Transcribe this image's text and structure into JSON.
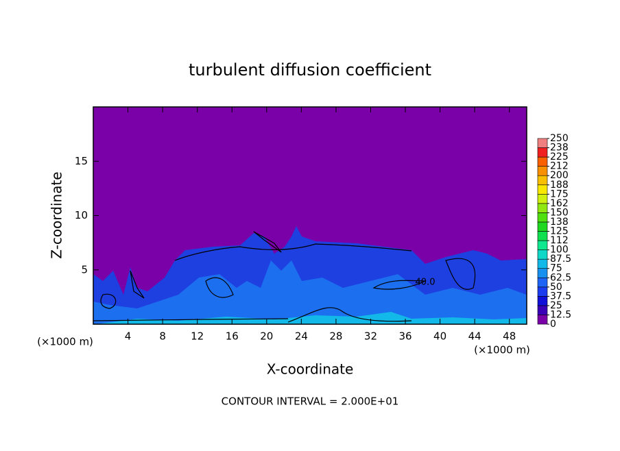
{
  "chart_data": {
    "type": "contour",
    "title": "turbulent diffusion coefficient",
    "x_label": "X-coordinate",
    "y_label": "Z-coordinate",
    "x_unit_labels": [
      "(×1000 m)",
      "(×1000 m)"
    ],
    "footer": "CONTOUR INTERVAL = 2.000E+01",
    "annotations": [
      "40.0"
    ],
    "xlim": [
      0,
      50
    ],
    "xticks": [
      4,
      8,
      12,
      16,
      20,
      24,
      28,
      32,
      36,
      40,
      44,
      48
    ],
    "ylim": [
      0,
      20
    ],
    "yticks": [
      5,
      10,
      15
    ],
    "colorbar_ticks": [
      0,
      12.5,
      25,
      37.5,
      50,
      62.5,
      75,
      87.5,
      100,
      112,
      125,
      138,
      150,
      162,
      175,
      188,
      200,
      212,
      225,
      238,
      250
    ],
    "colorbar_colors": [
      "#7a00a8",
      "#3a00b8",
      "#1010d8",
      "#1c3cf0",
      "#1e64f5",
      "#1890f0",
      "#12b8e8",
      "#10d8c8",
      "#10e890",
      "#10e050",
      "#20d820",
      "#50e010",
      "#90e810",
      "#d0f010",
      "#f8e800",
      "#f8c000",
      "#f89000",
      "#f86000",
      "#f02020",
      "#f08080"
    ]
  }
}
